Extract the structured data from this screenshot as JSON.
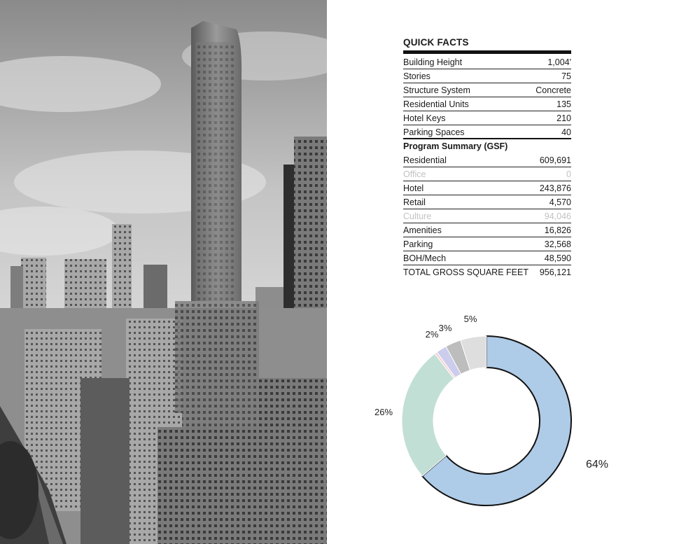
{
  "quick_facts": {
    "title": "QUICK FACTS",
    "rows": [
      {
        "label": "Building Height",
        "value": "1,004'"
      },
      {
        "label": "Stories",
        "value": "75"
      },
      {
        "label": "Structure System",
        "value": "Concrete"
      },
      {
        "label": "Residential Units",
        "value": "135"
      },
      {
        "label": "Hotel Keys",
        "value": "210"
      },
      {
        "label": "Parking Spaces",
        "value": "40"
      }
    ]
  },
  "program_summary": {
    "title": "Program Summary (GSF)",
    "rows": [
      {
        "label": "Residential",
        "value": "609,691"
      },
      {
        "label": "Office",
        "value": "0"
      },
      {
        "label": "Hotel",
        "value": "243,876"
      },
      {
        "label": "Retail",
        "value": "4,570"
      },
      {
        "label": "Culture",
        "value": "94,046"
      },
      {
        "label": "Amenities",
        "value": "16,826"
      },
      {
        "label": "Parking",
        "value": "32,568"
      },
      {
        "label": "BOH/Mech",
        "value": "48,590"
      },
      {
        "label": "TOTAL GROSS SQUARE FEET",
        "value": "956,121"
      }
    ]
  },
  "chart_data": {
    "type": "pie",
    "categories": [
      "Residential",
      "Hotel",
      "Retail",
      "Amenities",
      "Parking",
      "BOH/Mech"
    ],
    "values": [
      64,
      26,
      0.5,
      2,
      3,
      5
    ],
    "labels": [
      "64%",
      "26%",
      "",
      "2%",
      "3%",
      "5%"
    ],
    "colors": [
      "#aecbe8",
      "#c2dfd6",
      "#f5d3d3",
      "#ccccec",
      "#bdbdbd",
      "#dedede"
    ],
    "title": "",
    "xlabel": "",
    "ylabel": ""
  }
}
